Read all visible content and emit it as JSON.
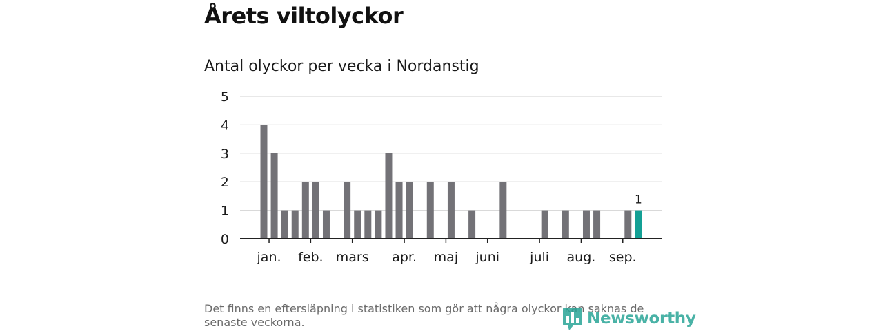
{
  "page": {
    "title": "Årets viltolyckor",
    "footnote": "Det finns en eftersläpning i statistiken som gör att några olyckor kan saknas de senaste veckorna.",
    "logo_text": "Newsworthy"
  },
  "colors": {
    "bar": "#737277",
    "highlight": "#13a095",
    "grid": "#d9d9d9",
    "axis": "#222222"
  },
  "chart_data": {
    "type": "bar",
    "title": "Antal olyckor per vecka i Nordanstig",
    "xlabel": "",
    "ylabel": "",
    "ylim": [
      0,
      5
    ],
    "yticks": [
      0,
      1,
      2,
      3,
      4,
      5
    ],
    "weeks": [
      1,
      2,
      3,
      4,
      5,
      6,
      7,
      8,
      9,
      10,
      11,
      12,
      13,
      14,
      15,
      16,
      17,
      18,
      19,
      20,
      21,
      22,
      23,
      24,
      25,
      26,
      27,
      28,
      29,
      30,
      31,
      32,
      33,
      34,
      35,
      36,
      37,
      38,
      39,
      40
    ],
    "values": [
      4,
      3,
      1,
      1,
      2,
      2,
      1,
      0,
      2,
      1,
      1,
      1,
      3,
      2,
      2,
      0,
      2,
      0,
      2,
      0,
      1,
      0,
      0,
      2,
      0,
      0,
      0,
      1,
      0,
      1,
      0,
      1,
      1,
      0,
      0,
      1,
      1,
      0,
      0,
      0
    ],
    "highlight": {
      "week": 37,
      "value": 1,
      "label": "1"
    },
    "month_labels": [
      {
        "label": "jan.",
        "week": 1.5
      },
      {
        "label": "feb.",
        "week": 5.5
      },
      {
        "label": "mars",
        "week": 9.5
      },
      {
        "label": "apr.",
        "week": 14.5
      },
      {
        "label": "maj",
        "week": 18.5
      },
      {
        "label": "juni",
        "week": 22.5
      },
      {
        "label": "juli",
        "week": 27.5
      },
      {
        "label": "aug.",
        "week": 31.5
      },
      {
        "label": "sep.",
        "week": 35.5
      }
    ],
    "grid": true,
    "legend": "none"
  }
}
